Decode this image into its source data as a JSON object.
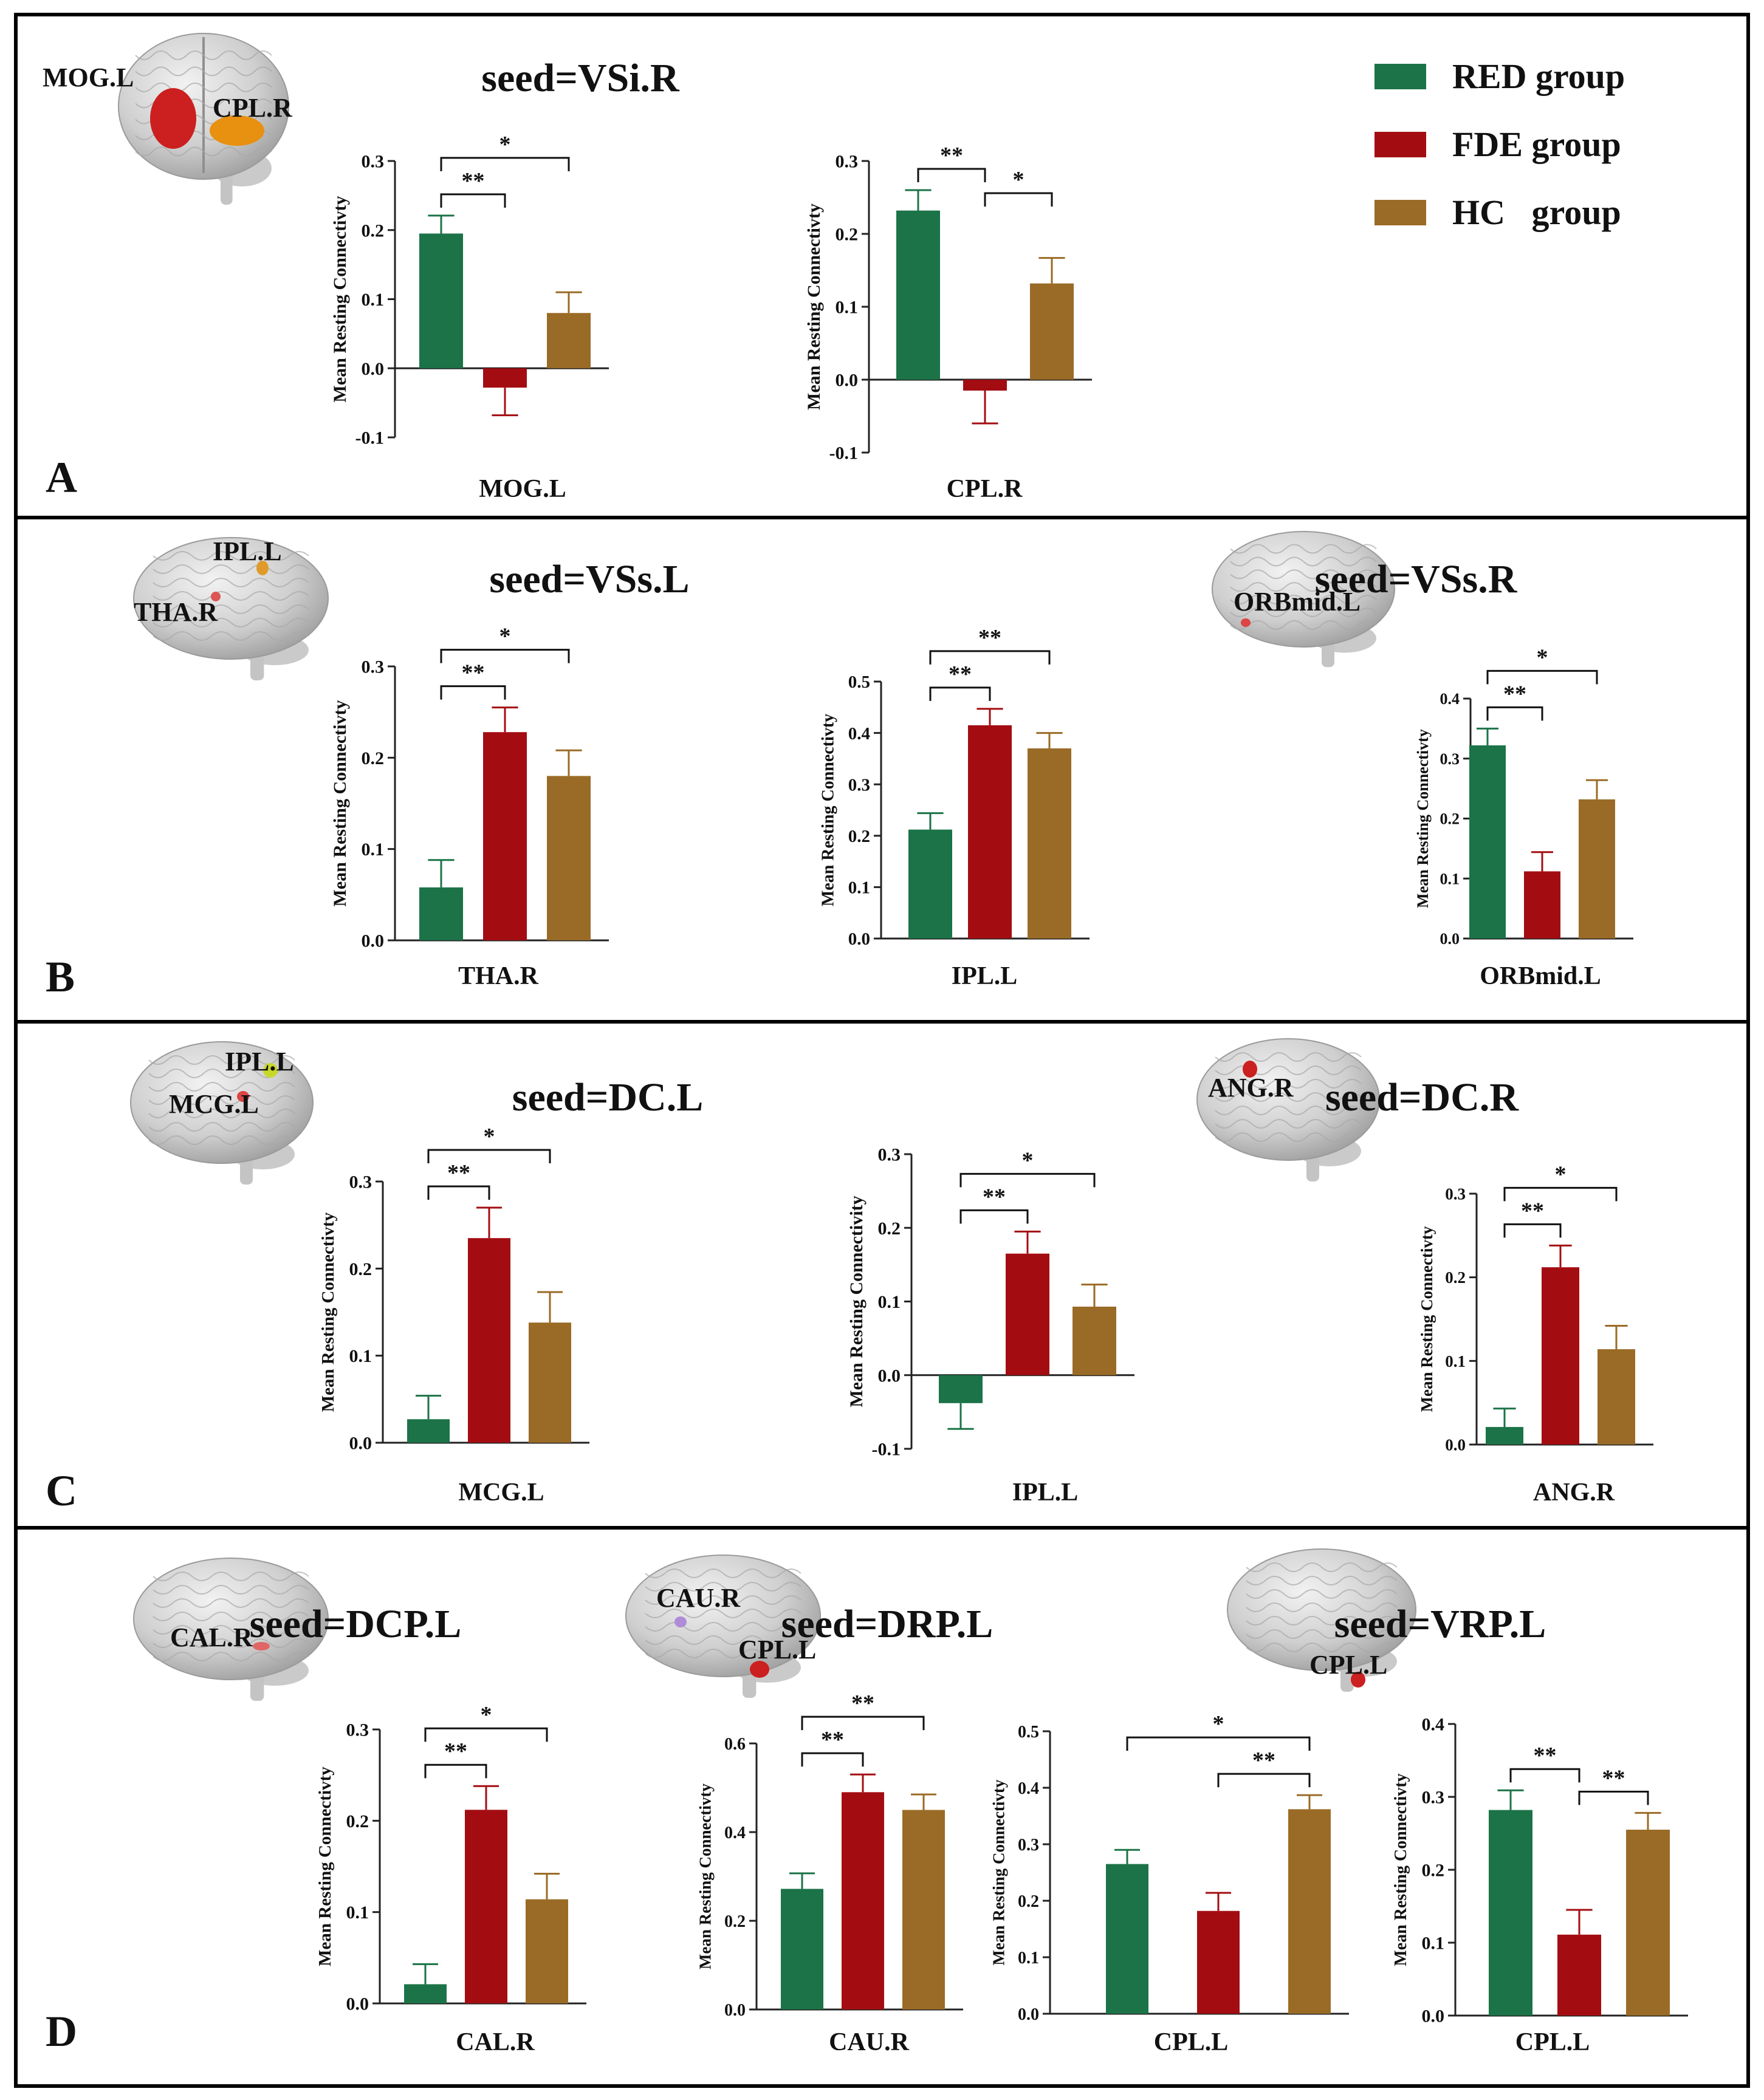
{
  "colors": {
    "red_group": "#1b7347",
    "fde_group": "#a30d12",
    "hc_group": "#9a6b26"
  },
  "legend": [
    {
      "label": "RED group",
      "color": "#1b7347"
    },
    {
      "label": "FDE group",
      "color": "#a30d12"
    },
    {
      "label": "HC   group",
      "color": "#9a6b26"
    }
  ],
  "panels": [
    {
      "letter": "A",
      "seeds": [
        "seed=VSi.R"
      ],
      "brains": [
        {
          "labels": [
            "MOG.L",
            "CPL.R"
          ],
          "view": "back"
        }
      ]
    },
    {
      "letter": "B",
      "seeds": [
        "seed=VSs.L",
        "seed=VSs.R"
      ],
      "brains": [
        {
          "labels": [
            "IPL.L",
            "THA.R"
          ],
          "view": "side"
        },
        {
          "labels": [
            "ORBmid.L"
          ],
          "view": "side"
        }
      ]
    },
    {
      "letter": "C",
      "seeds": [
        "seed=DC.L",
        "seed=DC.R"
      ],
      "brains": [
        {
          "labels": [
            "IPL.L",
            "MCG.L"
          ],
          "view": "side"
        },
        {
          "labels": [
            "ANG.R"
          ],
          "view": "side"
        }
      ]
    },
    {
      "letter": "D",
      "seeds": [
        "seed=DCP.L",
        "seed=DRP.L",
        "seed=VRP.L"
      ],
      "brains": [
        {
          "labels": [
            "CAL.R"
          ],
          "view": "side"
        },
        {
          "labels": [
            "CAU.R",
            "CPL.L"
          ],
          "view": "side"
        },
        {
          "labels": [
            "CPL.L"
          ],
          "view": "side"
        }
      ]
    }
  ],
  "chart_data": [
    {
      "id": "A1",
      "type": "bar",
      "ylabel": "Mean Resting Connectivty",
      "xlabel": "MOG.L",
      "ylim": [
        -0.1,
        0.3
      ],
      "ticks": [
        "0.3",
        "0.2",
        "0.1",
        "0.0",
        "-0.1"
      ],
      "series": [
        {
          "name": "RED group",
          "value": 0.195,
          "err": 0.026
        },
        {
          "name": "FDE group",
          "value": -0.028,
          "err": 0.04
        },
        {
          "name": "HC group",
          "value": 0.08,
          "err": 0.03
        }
      ],
      "sig": [
        {
          "from": 0,
          "to": 1,
          "label": "**"
        },
        {
          "from": 0,
          "to": 2,
          "label": "*"
        }
      ]
    },
    {
      "id": "A2",
      "type": "bar",
      "ylabel": "Mean Resting Connectivty",
      "xlabel": "CPL.R",
      "ylim": [
        -0.1,
        0.3
      ],
      "ticks": [
        "0.3",
        "0.2",
        "0.1",
        "0.0",
        "-0.1"
      ],
      "series": [
        {
          "name": "RED group",
          "value": 0.232,
          "err": 0.028
        },
        {
          "name": "FDE group",
          "value": -0.015,
          "err": 0.045
        },
        {
          "name": "HC group",
          "value": 0.132,
          "err": 0.035
        }
      ],
      "sig": [
        {
          "from": 0,
          "to": 1,
          "label": "**"
        },
        {
          "from": 1,
          "to": 2,
          "label": "*"
        }
      ]
    },
    {
      "id": "B1",
      "type": "bar",
      "ylabel": "Mean Resting Connectivty",
      "xlabel": "THA.R",
      "ylim": [
        0,
        0.3
      ],
      "ticks": [
        "0.3",
        "0.2",
        "0.1",
        "0.0"
      ],
      "series": [
        {
          "name": "RED group",
          "value": 0.058,
          "err": 0.03
        },
        {
          "name": "FDE group",
          "value": 0.228,
          "err": 0.027
        },
        {
          "name": "HC group",
          "value": 0.18,
          "err": 0.028
        }
      ],
      "sig": [
        {
          "from": 0,
          "to": 1,
          "label": "**"
        },
        {
          "from": 0,
          "to": 2,
          "label": "*"
        }
      ]
    },
    {
      "id": "B2",
      "type": "bar",
      "ylabel": "Mean Resting Connectivty",
      "xlabel": "IPL.L",
      "ylim": [
        0,
        0.5
      ],
      "ticks": [
        "0.5",
        "0.4",
        "0.3",
        "0.2",
        "0.1",
        "0.0"
      ],
      "series": [
        {
          "name": "RED group",
          "value": 0.212,
          "err": 0.032
        },
        {
          "name": "FDE group",
          "value": 0.415,
          "err": 0.032
        },
        {
          "name": "HC group",
          "value": 0.37,
          "err": 0.03
        }
      ],
      "sig": [
        {
          "from": 0,
          "to": 1,
          "label": "**"
        },
        {
          "from": 0,
          "to": 2,
          "label": "**"
        }
      ]
    },
    {
      "id": "B3",
      "type": "bar",
      "ylabel": "Mean Resting Connectivty",
      "xlabel": "ORBmid.L",
      "ylim": [
        0,
        0.4
      ],
      "ticks": [
        "0.4",
        "0.3",
        "0.2",
        "0.1",
        "0.0"
      ],
      "series": [
        {
          "name": "RED group",
          "value": 0.322,
          "err": 0.028
        },
        {
          "name": "FDE group",
          "value": 0.112,
          "err": 0.032
        },
        {
          "name": "HC group",
          "value": 0.232,
          "err": 0.032
        }
      ],
      "sig": [
        {
          "from": 0,
          "to": 1,
          "label": "**"
        },
        {
          "from": 0,
          "to": 2,
          "label": "*"
        }
      ]
    },
    {
      "id": "C1",
      "type": "bar",
      "ylabel": "Mean Resting Connectivty",
      "xlabel": "MCG.L",
      "ylim": [
        0,
        0.3
      ],
      "ticks": [
        "0.3",
        "0.2",
        "0.1",
        "0.0"
      ],
      "series": [
        {
          "name": "RED group",
          "value": 0.027,
          "err": 0.027
        },
        {
          "name": "FDE group",
          "value": 0.235,
          "err": 0.035
        },
        {
          "name": "HC group",
          "value": 0.138,
          "err": 0.035
        }
      ],
      "sig": [
        {
          "from": 0,
          "to": 1,
          "label": "**"
        },
        {
          "from": 0,
          "to": 2,
          "label": "*"
        }
      ]
    },
    {
      "id": "C2",
      "type": "bar",
      "ylabel": "Mean Resting Connectivity",
      "xlabel": "IPL.L",
      "ylim": [
        -0.1,
        0.3
      ],
      "ticks": [
        "0.3",
        "0.2",
        "0.1",
        "0.0",
        "-0.1"
      ],
      "series": [
        {
          "name": "RED group",
          "value": -0.038,
          "err": 0.035
        },
        {
          "name": "FDE group",
          "value": 0.165,
          "err": 0.03
        },
        {
          "name": "HC group",
          "value": 0.093,
          "err": 0.03
        }
      ],
      "sig": [
        {
          "from": 0,
          "to": 1,
          "label": "**"
        },
        {
          "from": 0,
          "to": 2,
          "label": "*"
        }
      ]
    },
    {
      "id": "C3",
      "type": "bar",
      "ylabel": "Mean Resting Connectivty",
      "xlabel": "ANG.R",
      "ylim": [
        0,
        0.3
      ],
      "ticks": [
        "0.3",
        "0.2",
        "0.1",
        "0.0"
      ],
      "series": [
        {
          "name": "RED group",
          "value": 0.021,
          "err": 0.022
        },
        {
          "name": "FDE group",
          "value": 0.212,
          "err": 0.026
        },
        {
          "name": "HC group",
          "value": 0.114,
          "err": 0.028
        }
      ],
      "sig": [
        {
          "from": 0,
          "to": 1,
          "label": "**"
        },
        {
          "from": 0,
          "to": 2,
          "label": "*"
        }
      ]
    },
    {
      "id": "D1",
      "type": "bar",
      "ylabel": "Mean Resting Connectivty",
      "xlabel": "CAL.R",
      "ylim": [
        0,
        0.3
      ],
      "ticks": [
        "0.3",
        "0.2",
        "0.1",
        "0.0"
      ],
      "series": [
        {
          "name": "RED group",
          "value": 0.021,
          "err": 0.022
        },
        {
          "name": "FDE group",
          "value": 0.212,
          "err": 0.026
        },
        {
          "name": "HC group",
          "value": 0.114,
          "err": 0.028
        }
      ],
      "sig": [
        {
          "from": 0,
          "to": 1,
          "label": "**"
        },
        {
          "from": 0,
          "to": 2,
          "label": "*"
        }
      ]
    },
    {
      "id": "D2",
      "type": "bar",
      "ylabel": "Mean Resting Connectivty",
      "xlabel": "CAU.R",
      "ylim": [
        0,
        0.6
      ],
      "ticks": [
        "0.6",
        "0.4",
        "0.2",
        "0.0"
      ],
      "series": [
        {
          "name": "RED group",
          "value": 0.272,
          "err": 0.035
        },
        {
          "name": "FDE group",
          "value": 0.49,
          "err": 0.04
        },
        {
          "name": "HC group",
          "value": 0.45,
          "err": 0.035
        }
      ],
      "sig": [
        {
          "from": 0,
          "to": 1,
          "label": "**"
        },
        {
          "from": 0,
          "to": 2,
          "label": "**"
        }
      ]
    },
    {
      "id": "D3",
      "type": "bar",
      "ylabel": "Mean Resting Connectivty",
      "xlabel": "CPL.L",
      "ylim": [
        0,
        0.5
      ],
      "ticks": [
        "0.5",
        "0.4",
        "0.3",
        "0.2",
        "0.1",
        "0.0"
      ],
      "series": [
        {
          "name": "RED group",
          "value": 0.265,
          "err": 0.025
        },
        {
          "name": "FDE group",
          "value": 0.182,
          "err": 0.032
        },
        {
          "name": "HC group",
          "value": 0.362,
          "err": 0.025
        }
      ],
      "sig": [
        {
          "from": 1,
          "to": 2,
          "label": "**"
        },
        {
          "from": 0,
          "to": 2,
          "label": "*"
        }
      ]
    },
    {
      "id": "D4",
      "type": "bar",
      "ylabel": "Mean Resting Connectivty",
      "xlabel": "CPL.L",
      "ylim": [
        0,
        0.4
      ],
      "ticks": [
        "0.4",
        "0.3",
        "0.2",
        "0.1",
        "0.0"
      ],
      "series": [
        {
          "name": "RED group",
          "value": 0.282,
          "err": 0.027
        },
        {
          "name": "FDE group",
          "value": 0.111,
          "err": 0.034
        },
        {
          "name": "HC group",
          "value": 0.255,
          "err": 0.023
        }
      ],
      "sig": [
        {
          "from": 0,
          "to": 1,
          "label": "**"
        },
        {
          "from": 1,
          "to": 2,
          "label": "**"
        }
      ]
    }
  ]
}
